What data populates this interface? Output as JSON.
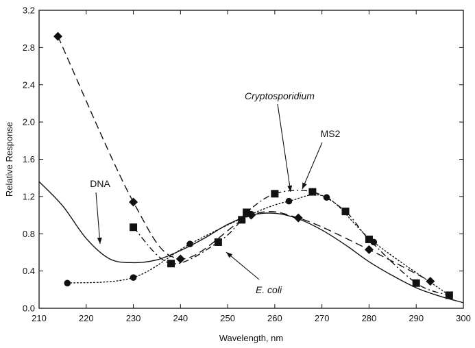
{
  "chart_data": {
    "type": "line",
    "xlabel": "Wavelength, nm",
    "ylabel": "Relative Response",
    "xlim": [
      210,
      300
    ],
    "ylim": [
      0.0,
      3.2
    ],
    "x_ticks": [
      210,
      220,
      230,
      240,
      250,
      260,
      270,
      280,
      290,
      300
    ],
    "x_tick_labels": [
      "210",
      "220",
      "230",
      "240",
      "250",
      "260",
      "270",
      "280",
      "290",
      "300"
    ],
    "y_ticks": [
      0.0,
      0.4,
      0.8,
      1.2,
      1.6,
      2.0,
      2.4,
      2.8,
      3.2
    ],
    "y_tick_labels": [
      "0.0",
      "0.4",
      "0.8",
      "1.2",
      "1.6",
      "2.0",
      "2.4",
      "2.8",
      "3.2"
    ],
    "grid": false,
    "legend": "none",
    "series": [
      {
        "name": "DNA",
        "line_style": "solid",
        "marker": "none",
        "x": [
          210,
          215,
          220,
          225,
          230,
          235,
          240,
          245,
          250,
          255,
          260,
          265,
          270,
          275,
          280,
          285,
          290,
          295,
          300
        ],
        "y": [
          1.36,
          1.1,
          0.75,
          0.53,
          0.49,
          0.52,
          0.62,
          0.75,
          0.9,
          1.0,
          1.02,
          0.96,
          0.84,
          0.68,
          0.5,
          0.35,
          0.22,
          0.13,
          0.06
        ]
      },
      {
        "name": "E. coli",
        "line_style": "dash",
        "marker": "diamond",
        "x": [
          214,
          230,
          240,
          255,
          265,
          280,
          293
        ],
        "y": [
          2.92,
          1.14,
          0.53,
          1.0,
          0.97,
          0.63,
          0.29
        ]
      },
      {
        "name": "Cryptosporidium",
        "line_style": "dot",
        "marker": "circle",
        "x": [
          216,
          230,
          242,
          255,
          263,
          271,
          281,
          297
        ],
        "y": [
          0.27,
          0.33,
          0.69,
          1.01,
          1.15,
          1.19,
          0.71,
          0.14
        ]
      },
      {
        "name": "MS2",
        "line_style": "dashdot",
        "marker": "square",
        "x": [
          230,
          238,
          248,
          253,
          254,
          260,
          268,
          275,
          280,
          290,
          297
        ],
        "y": [
          0.87,
          0.48,
          0.71,
          0.95,
          1.03,
          1.23,
          1.25,
          1.04,
          0.74,
          0.27,
          0.14
        ]
      }
    ],
    "annotations": [
      {
        "text": "DNA",
        "italic": false,
        "series": "DNA"
      },
      {
        "text": "Cryptosporidium",
        "italic": true,
        "series": "Cryptosporidium"
      },
      {
        "text": "MS2",
        "italic": false,
        "series": "MS2"
      },
      {
        "text": "E. coli",
        "italic": true,
        "series": "E. coli"
      }
    ]
  }
}
